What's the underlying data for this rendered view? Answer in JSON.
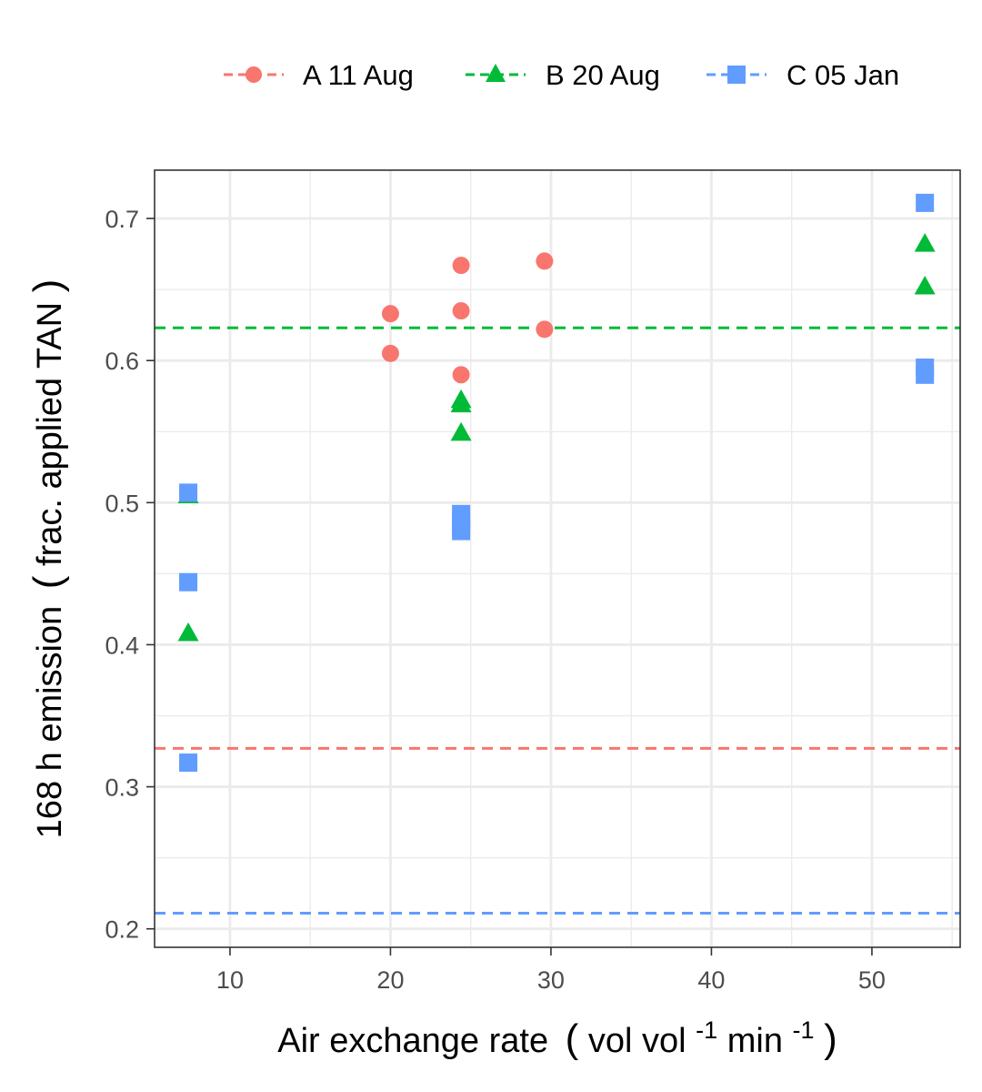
{
  "colors": {
    "A": "#F8766D",
    "B": "#00BA38",
    "C": "#619CFF",
    "grid": "#EBEBEB",
    "frame": "#333333"
  },
  "chart_data": {
    "type": "scatter",
    "xlabel": {
      "main": "Air exchange rate",
      "open_paren": "(",
      "text1": "vol vol",
      "sup1": "-1",
      "text2": " min",
      "sup2": "-1",
      "close_paren": ")"
    },
    "ylabel": {
      "main": "168 h emission",
      "open_paren": "(",
      "inner": "frac. applied TAN",
      "close_paren": ")"
    },
    "xlim": [
      5.3,
      55.5
    ],
    "ylim": [
      0.187,
      0.734
    ],
    "x_ticks": [
      10,
      20,
      30,
      40,
      50
    ],
    "x_tick_labels": [
      "10",
      "20",
      "30",
      "40",
      "50"
    ],
    "x_minor": [
      15,
      25,
      35,
      45,
      55
    ],
    "y_ticks": [
      0.2,
      0.3,
      0.4,
      0.5,
      0.6,
      0.7
    ],
    "y_tick_labels": [
      "0.2",
      "0.3",
      "0.4",
      "0.5",
      "0.6",
      "0.7"
    ],
    "y_minor": [
      0.25,
      0.35,
      0.45,
      0.55,
      0.65
    ],
    "grid": true,
    "legend_position": "top",
    "series": [
      {
        "name": "A 11 Aug",
        "color_key": "A",
        "shape": "circle",
        "x": [
          20.0,
          20.0,
          24.4,
          24.4,
          24.4,
          29.6,
          29.6
        ],
        "y": [
          0.633,
          0.605,
          0.667,
          0.635,
          0.59,
          0.67,
          0.622
        ],
        "hline": 0.327
      },
      {
        "name": "B 20 Aug",
        "color_key": "B",
        "shape": "triangle",
        "x": [
          7.4,
          7.4,
          24.4,
          24.4,
          24.4,
          53.3,
          53.3
        ],
        "y": [
          0.505,
          0.408,
          0.572,
          0.569,
          0.549,
          0.682,
          0.652
        ],
        "hline": 0.623
      },
      {
        "name": "C 05 Jan",
        "color_key": "C",
        "shape": "square",
        "x": [
          7.4,
          7.4,
          7.4,
          24.4,
          24.4,
          24.4,
          24.4,
          53.3,
          53.3,
          53.3
        ],
        "y": [
          0.507,
          0.444,
          0.317,
          0.492,
          0.487,
          0.483,
          0.48,
          0.711,
          0.595,
          0.59
        ],
        "hline": 0.211
      }
    ]
  }
}
